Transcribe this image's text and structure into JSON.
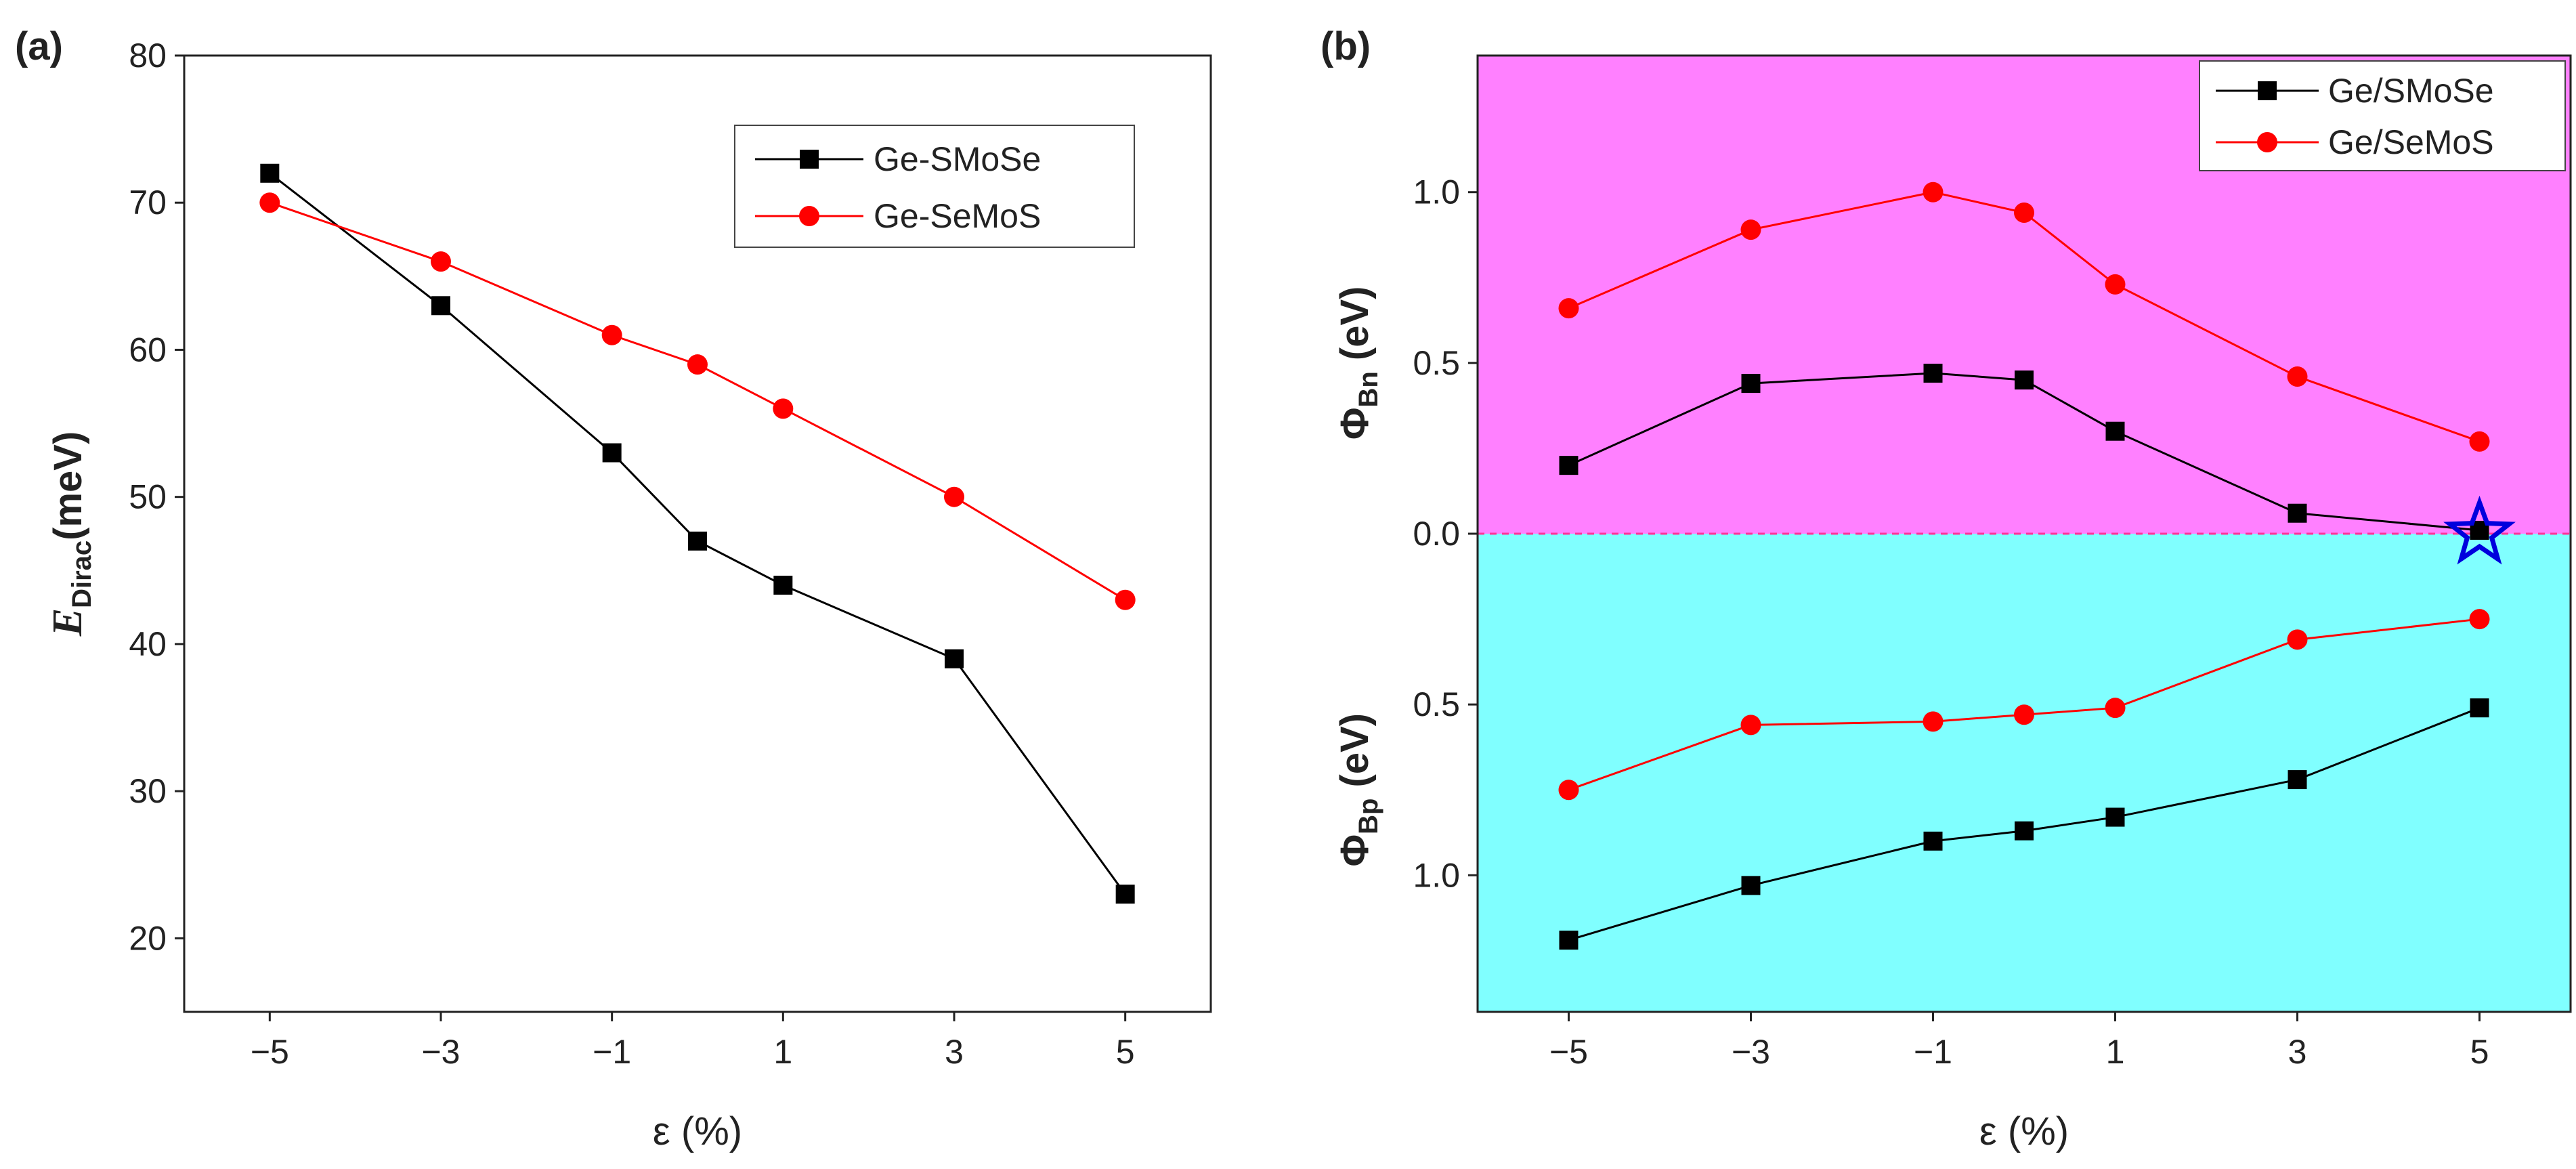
{
  "chart_data": [
    {
      "panel": "(a)",
      "type": "line",
      "title": "",
      "xlabel": "ε (%)",
      "ylabel": {
        "main": "E",
        "subscript": "Dirac",
        "rest": "(meV)"
      },
      "x": [
        -5,
        -3,
        -1,
        0,
        1,
        3,
        5
      ],
      "xticks": [
        -5,
        -3,
        -1,
        1,
        3,
        5
      ],
      "xtick_labels": [
        "−5",
        "−3",
        "−1",
        "1",
        "3",
        "5"
      ],
      "xlim": [
        -6,
        6
      ],
      "yticks": [
        20,
        30,
        40,
        50,
        60,
        70,
        80
      ],
      "ytick_labels": [
        "20",
        "30",
        "40",
        "50",
        "60",
        "70",
        "80"
      ],
      "ylim": [
        15,
        80
      ],
      "legend_position": "top-right",
      "series": [
        {
          "name": "Ge-SMoSe",
          "color": "#000000",
          "marker": "square",
          "values": [
            72,
            63,
            53,
            47,
            44,
            39,
            23
          ]
        },
        {
          "name": "Ge-SeMoS",
          "color": "#ff0000",
          "marker": "circle",
          "values": [
            70,
            66,
            61,
            59,
            56,
            50,
            43
          ]
        }
      ]
    },
    {
      "panel": "(b)",
      "type": "line",
      "title": "",
      "xlabel": "ε (%)",
      "ylabel_top": {
        "main": "Φ",
        "subscript": "Bn",
        "rest": " (eV)"
      },
      "ylabel_bottom": {
        "main": "Φ",
        "subscript": "Bp",
        "rest": " (eV)"
      },
      "x": [
        -5,
        -3,
        -1,
        0,
        1,
        3,
        5
      ],
      "xticks": [
        -5,
        -3,
        -1,
        1,
        3,
        5
      ],
      "xtick_labels": [
        "−5",
        "−3",
        "−1",
        "1",
        "3",
        "5"
      ],
      "xlim": [
        -6,
        6
      ],
      "ylim": [
        -1.4,
        1.4
      ],
      "yticks_top": [
        0.0,
        0.5,
        1.0
      ],
      "ytick_labels_top": [
        "0.0",
        "0.5",
        "1.0"
      ],
      "yticks_bottom": [
        -0.5,
        -1.0
      ],
      "ytick_labels_bottom": [
        "0.5",
        "1.0"
      ],
      "note": "Upper region (pink) shows Φ_Bn; lower region (cyan) shows Φ_Bp plotted downward (positive values below 0).",
      "region_colors": {
        "top": "#ff80ff",
        "bottom": "#80ffff"
      },
      "zero_line_color": "#ff3399",
      "legend_position": "top-right",
      "series": [
        {
          "name": "Ge/SMoSe",
          "region": "Bn",
          "color": "#000000",
          "marker": "square",
          "values": [
            0.2,
            0.44,
            0.47,
            0.45,
            0.3,
            0.06,
            0.01
          ]
        },
        {
          "name": "Ge/SeMoS",
          "region": "Bn",
          "color": "#ff0000",
          "marker": "circle",
          "values": [
            0.66,
            0.89,
            1.0,
            0.94,
            0.73,
            0.46,
            0.27
          ]
        },
        {
          "name": "Ge/SeMoS",
          "region": "Bp",
          "color": "#ff0000",
          "marker": "circle",
          "values": [
            0.75,
            0.56,
            0.55,
            0.53,
            0.51,
            0.31,
            0.25
          ]
        },
        {
          "name": "Ge/SMoSe",
          "region": "Bp",
          "color": "#000000",
          "marker": "square",
          "values": [
            1.19,
            1.03,
            0.9,
            0.87,
            0.83,
            0.72,
            0.51
          ]
        }
      ],
      "annotation": {
        "type": "star",
        "color": "#0000dd",
        "x": 5,
        "y": 0.0
      }
    }
  ]
}
